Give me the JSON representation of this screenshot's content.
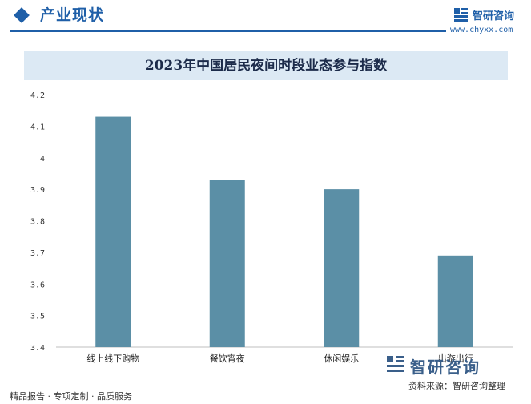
{
  "header": {
    "section_title": "产业现状",
    "brand_name": "智研咨询",
    "brand_url": "www.chyxx.com"
  },
  "chart_data": {
    "type": "bar",
    "title": "2023年中国居民夜间时段业态参与指数",
    "categories": [
      "线上线下购物",
      "餐饮宵夜",
      "休闲娱乐",
      "出游出行"
    ],
    "values": [
      4.13,
      3.93,
      3.9,
      3.69
    ],
    "ylim": [
      3.4,
      4.2
    ],
    "yticks": [
      "4.2",
      "4.1",
      "4",
      "3.9",
      "3.8",
      "3.7",
      "3.6",
      "3.5",
      "3.4"
    ],
    "xlabel": "",
    "ylabel": "",
    "grid": false,
    "bar_color": "#5b8fa6"
  },
  "footer": {
    "left_text": "精品报告 · 专项定制 · 品质服务",
    "source": "资料来源：智研咨询整理",
    "logo_name": "智研咨询"
  }
}
